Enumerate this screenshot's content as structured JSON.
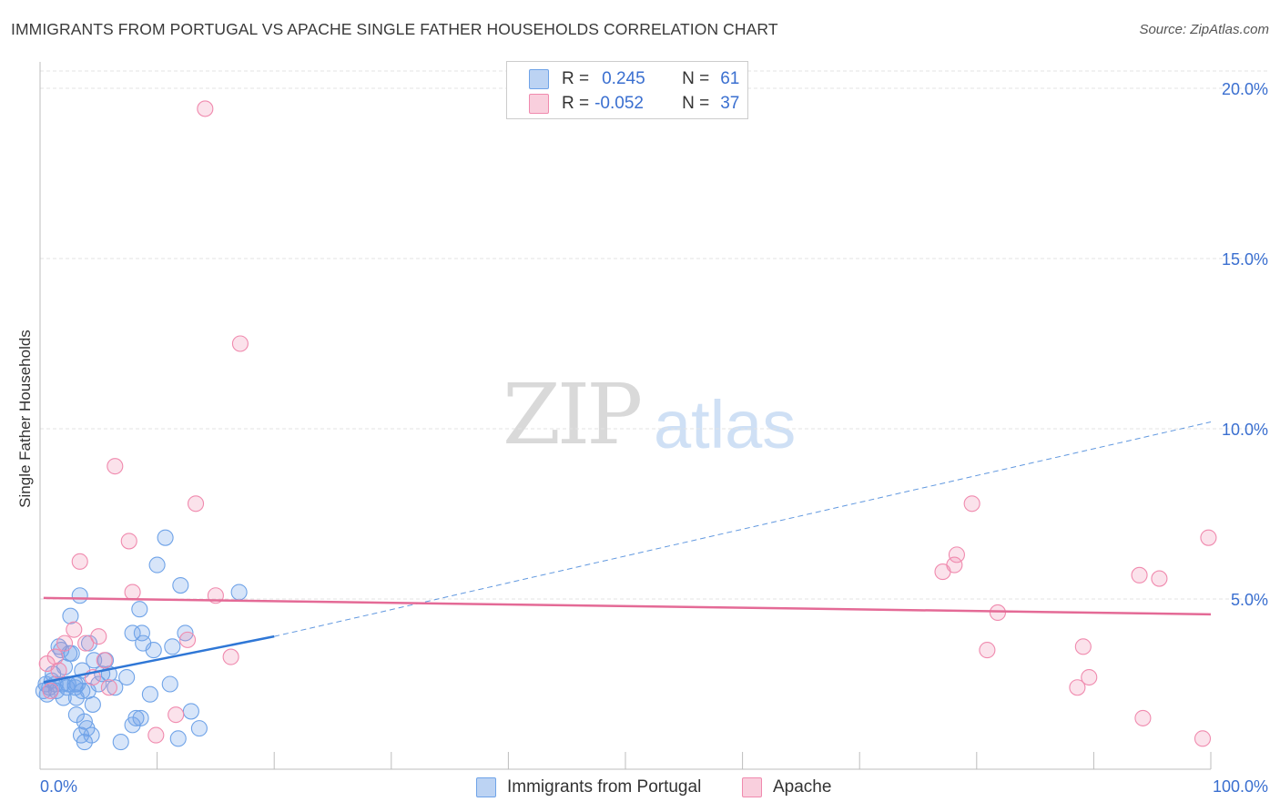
{
  "header": {
    "title": "IMMIGRANTS FROM PORTUGAL VS APACHE SINGLE FATHER HOUSEHOLDS CORRELATION CHART",
    "source": "Source: ZipAtlas.com"
  },
  "watermark": {
    "zip": "ZIP",
    "atlas": "atlas"
  },
  "legend": {
    "rows": [
      {
        "r_label": "R =",
        "r_value": "0.245",
        "n_label": "N =",
        "n_value": "61",
        "color": "#6fa3e8"
      },
      {
        "r_label": "R =",
        "r_value": "-0.052",
        "n_label": "N =",
        "n_value": "37",
        "color": "#f08aae"
      }
    ]
  },
  "chart_data": {
    "type": "scatter",
    "title": "IMMIGRANTS FROM PORTUGAL VS APACHE SINGLE FATHER HOUSEHOLDS CORRELATION CHART",
    "xlabel": "",
    "ylabel": "Single Father Households",
    "xlim": [
      0,
      100
    ],
    "ylim": [
      0,
      20.6
    ],
    "x_tick_labels": [
      "0.0%",
      "100.0%"
    ],
    "y_ticks": [
      5,
      10,
      15,
      20
    ],
    "y_tick_labels": [
      "5.0%",
      "10.0%",
      "15.0%",
      "20.0%"
    ],
    "grid": true,
    "legend_position": "top-center",
    "series": [
      {
        "name": "Immigrants from Portugal",
        "color": "#6fa3e8",
        "trend": {
          "x": [
            0.3,
            20
          ],
          "y": [
            2.55,
            3.9
          ],
          "dashed_extension": {
            "x": [
              20,
              100
            ],
            "y": [
              3.9,
              10.2
            ]
          }
        },
        "points": [
          [
            0.3,
            2.3
          ],
          [
            0.5,
            2.5
          ],
          [
            0.6,
            2.2
          ],
          [
            0.8,
            2.4
          ],
          [
            1.0,
            2.6
          ],
          [
            1.1,
            2.8
          ],
          [
            1.3,
            2.5
          ],
          [
            1.4,
            2.3
          ],
          [
            1.6,
            3.6
          ],
          [
            1.8,
            3.5
          ],
          [
            2.0,
            2.1
          ],
          [
            2.1,
            3.0
          ],
          [
            2.3,
            2.4
          ],
          [
            2.4,
            2.5
          ],
          [
            2.5,
            3.4
          ],
          [
            2.6,
            4.5
          ],
          [
            2.7,
            3.4
          ],
          [
            3.0,
            2.5
          ],
          [
            3.1,
            2.1
          ],
          [
            3.1,
            1.6
          ],
          [
            3.2,
            2.5
          ],
          [
            3.4,
            5.1
          ],
          [
            3.5,
            1.0
          ],
          [
            3.6,
            2.3
          ],
          [
            3.6,
            2.9
          ],
          [
            3.8,
            1.4
          ],
          [
            3.8,
            0.8
          ],
          [
            4.0,
            1.2
          ],
          [
            4.1,
            2.3
          ],
          [
            4.2,
            3.7
          ],
          [
            4.4,
            1.0
          ],
          [
            4.5,
            1.9
          ],
          [
            4.6,
            3.2
          ],
          [
            5.0,
            2.5
          ],
          [
            5.3,
            2.8
          ],
          [
            5.6,
            3.2
          ],
          [
            5.9,
            2.8
          ],
          [
            6.4,
            2.4
          ],
          [
            6.9,
            0.8
          ],
          [
            7.4,
            2.7
          ],
          [
            7.9,
            4.0
          ],
          [
            7.9,
            1.3
          ],
          [
            8.2,
            1.5
          ],
          [
            8.5,
            4.7
          ],
          [
            8.6,
            1.5
          ],
          [
            8.7,
            4.0
          ],
          [
            8.8,
            3.7
          ],
          [
            9.4,
            2.2
          ],
          [
            9.7,
            3.5
          ],
          [
            10.0,
            6.0
          ],
          [
            10.7,
            6.8
          ],
          [
            11.1,
            2.5
          ],
          [
            11.3,
            3.6
          ],
          [
            11.8,
            0.9
          ],
          [
            12.0,
            5.4
          ],
          [
            12.4,
            4.0
          ],
          [
            12.9,
            1.7
          ],
          [
            13.6,
            1.2
          ],
          [
            17.0,
            5.2
          ],
          [
            3.0,
            2.4
          ],
          [
            1.9,
            2.5
          ]
        ]
      },
      {
        "name": "Apache",
        "color": "#f08aae",
        "trend": {
          "x": [
            0.3,
            100
          ],
          "y": [
            5.03,
            4.55
          ]
        },
        "points": [
          [
            0.6,
            3.1
          ],
          [
            0.9,
            2.3
          ],
          [
            1.3,
            3.3
          ],
          [
            1.6,
            2.9
          ],
          [
            2.1,
            3.7
          ],
          [
            2.9,
            4.1
          ],
          [
            3.4,
            6.1
          ],
          [
            3.9,
            3.7
          ],
          [
            4.5,
            2.7
          ],
          [
            5.0,
            3.9
          ],
          [
            5.5,
            3.2
          ],
          [
            5.9,
            2.4
          ],
          [
            6.4,
            8.9
          ],
          [
            7.6,
            6.7
          ],
          [
            7.9,
            5.2
          ],
          [
            9.9,
            1.0
          ],
          [
            11.6,
            1.6
          ],
          [
            12.6,
            3.8
          ],
          [
            13.3,
            7.8
          ],
          [
            14.1,
            19.4
          ],
          [
            15.0,
            5.1
          ],
          [
            16.3,
            3.3
          ],
          [
            17.1,
            12.5
          ],
          [
            77.1,
            5.8
          ],
          [
            78.1,
            6.0
          ],
          [
            78.3,
            6.3
          ],
          [
            79.6,
            7.8
          ],
          [
            80.9,
            3.5
          ],
          [
            81.8,
            4.6
          ],
          [
            88.6,
            2.4
          ],
          [
            89.1,
            3.6
          ],
          [
            89.6,
            2.7
          ],
          [
            93.9,
            5.7
          ],
          [
            94.2,
            1.5
          ],
          [
            95.6,
            5.6
          ],
          [
            99.3,
            0.9
          ],
          [
            99.8,
            6.8
          ]
        ]
      }
    ]
  },
  "bottom_legend": [
    {
      "label": "Immigrants from Portugal",
      "color": "#6fa3e8"
    },
    {
      "label": "Apache",
      "color": "#f08aae"
    }
  ]
}
